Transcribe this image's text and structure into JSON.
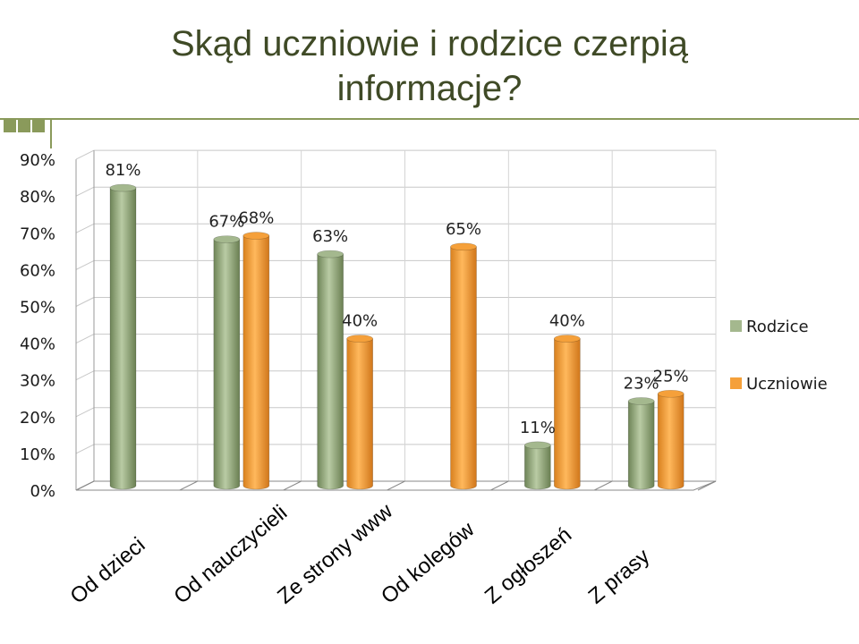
{
  "title": "Skąd uczniowie i rodzice czerpią informacje?",
  "colors": {
    "Rodzice": "#a4b88e",
    "Uczniowie": "#f5a03a",
    "title": "#3f4a26",
    "accent": "#8a9a5b"
  },
  "chart_data": {
    "type": "bar",
    "title": "Skąd uczniowie i rodzice czerpią informacje?",
    "categories": [
      "Od dzieci",
      "Od nauczycieli",
      "Ze strony www",
      "Od kolegów",
      "Z ogłoszeń",
      "Z prasy"
    ],
    "series": [
      {
        "name": "Rodzice",
        "values": [
          81,
          67,
          63,
          null,
          11,
          23
        ]
      },
      {
        "name": "Uczniowie",
        "values": [
          null,
          68,
          40,
          65,
          40,
          25
        ]
      }
    ],
    "data_labels": [
      [
        "81%",
        "67%",
        "63%",
        null,
        "11%",
        "23%"
      ],
      [
        null,
        "68%",
        "40%",
        "65%",
        "40%",
        "25%"
      ]
    ],
    "y_ticks": [
      "0%",
      "10%",
      "20%",
      "30%",
      "40%",
      "50%",
      "60%",
      "70%",
      "80%",
      "90%"
    ],
    "ylim": [
      0,
      90
    ],
    "unit": "%",
    "grid": true,
    "legend_position": "right"
  }
}
